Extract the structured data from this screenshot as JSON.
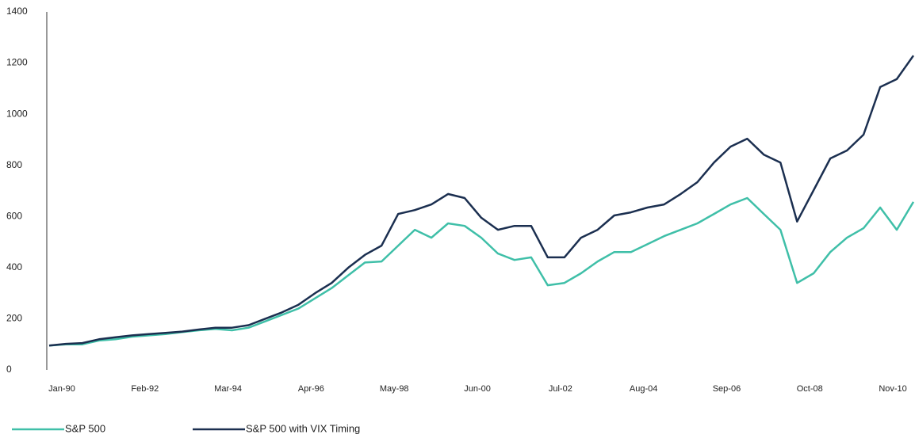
{
  "chart_data": {
    "type": "line",
    "categories": [
      "Jan-90",
      null,
      null,
      null,
      null,
      "Feb-92",
      null,
      null,
      null,
      null,
      "Mar-94",
      null,
      null,
      null,
      null,
      "Apr-96",
      null,
      null,
      null,
      null,
      "May-98",
      null,
      null,
      null,
      null,
      "Jun-00",
      null,
      null,
      null,
      null,
      "Jul-02",
      null,
      null,
      null,
      null,
      "Aug-04",
      null,
      null,
      null,
      null,
      "Sep-06",
      null,
      null,
      null,
      null,
      "Oct-08",
      null,
      null,
      null,
      null,
      "Nov-10",
      null,
      null
    ],
    "series": [
      {
        "name": "S&P 500",
        "color": "#3fbfa8",
        "values": [
          95,
          100,
          100,
          115,
          120,
          130,
          135,
          140,
          148,
          155,
          160,
          155,
          165,
          190,
          215,
          240,
          280,
          320,
          370,
          420,
          424,
          486,
          548,
          517,
          573,
          563,
          517,
          455,
          430,
          440,
          331,
          340,
          378,
          424,
          461,
          461,
          492,
          523,
          548,
          573,
          610,
          647,
          672,
          610,
          548,
          340,
          378,
          461,
          517,
          554,
          635,
          548,
          657
        ]
      },
      {
        "name": "S&P 500 with VIX Timing",
        "color": "#1b2f50",
        "values": [
          95,
          102,
          105,
          120,
          128,
          135,
          140,
          145,
          150,
          158,
          165,
          165,
          175,
          200,
          225,
          255,
          300,
          340,
          400,
          450,
          486,
          610,
          625,
          647,
          688,
          672,
          595,
          548,
          563,
          563,
          440,
          440,
          517,
          548,
          604,
          616,
          635,
          647,
          688,
          734,
          811,
          873,
          904,
          842,
          811,
          580,
          703,
          827,
          858,
          920,
          1106,
          1137,
          1229
        ]
      }
    ],
    "ylim": [
      0,
      1400
    ],
    "yticks": [
      0,
      200,
      400,
      600,
      800,
      1000,
      1200,
      1400
    ],
    "grid": false,
    "legend": "bottom-left"
  }
}
